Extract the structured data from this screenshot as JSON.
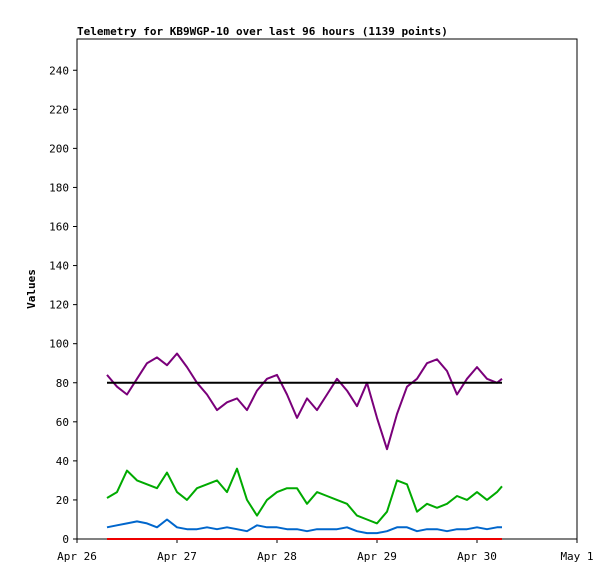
{
  "chart_data": {
    "type": "line",
    "title": "Telemetry for KB9WGP-10 over last 96 hours (1139 points)",
    "xlabel": "",
    "ylabel": "Values",
    "x_tick_labels": [
      "Apr 26",
      "Apr 27",
      "Apr 28",
      "Apr 29",
      "Apr 30",
      "May 1"
    ],
    "y_ticks": [
      0,
      20,
      40,
      60,
      80,
      100,
      120,
      140,
      160,
      180,
      200,
      220,
      240
    ],
    "xlim_days": [
      26,
      31
    ],
    "ylim": [
      0,
      256
    ],
    "grid": false,
    "x": [
      26.3,
      26.4,
      26.5,
      26.6,
      26.7,
      26.8,
      26.9,
      27.0,
      27.1,
      27.2,
      27.3,
      27.4,
      27.5,
      27.6,
      27.7,
      27.8,
      27.9,
      28.0,
      28.1,
      28.2,
      28.3,
      28.4,
      28.5,
      28.6,
      28.7,
      28.8,
      28.9,
      29.0,
      29.1,
      29.2,
      29.3,
      29.4,
      29.5,
      29.6,
      29.7,
      29.8,
      29.9,
      30.0,
      30.1,
      30.2,
      30.25
    ],
    "series": [
      {
        "color": "#7a007a",
        "values": [
          84,
          78,
          74,
          82,
          90,
          93,
          89,
          95,
          88,
          80,
          74,
          66,
          70,
          72,
          66,
          76,
          82,
          84,
          74,
          62,
          72,
          66,
          74,
          82,
          76,
          68,
          80,
          62,
          46,
          64,
          78,
          82,
          90,
          92,
          86,
          74,
          82,
          88,
          82,
          80,
          82
        ]
      },
      {
        "color": "#000000",
        "values": [
          80,
          80,
          80,
          80,
          80,
          80,
          80,
          80,
          80,
          80,
          80,
          80,
          80,
          80,
          80,
          80,
          80,
          80,
          80,
          80,
          80,
          80,
          80,
          80,
          80,
          80,
          80,
          80,
          80,
          80,
          80,
          80,
          80,
          80,
          80,
          80,
          80,
          80,
          80,
          80,
          80
        ]
      },
      {
        "color": "#00aa00",
        "values": [
          21,
          24,
          35,
          30,
          28,
          26,
          34,
          24,
          20,
          26,
          28,
          30,
          24,
          36,
          20,
          12,
          20,
          24,
          26,
          26,
          18,
          24,
          22,
          20,
          18,
          12,
          10,
          8,
          14,
          30,
          28,
          14,
          18,
          16,
          18,
          22,
          20,
          24,
          20,
          24,
          27
        ]
      },
      {
        "color": "#0066cc",
        "values": [
          6,
          7,
          8,
          9,
          8,
          6,
          10,
          6,
          5,
          5,
          6,
          5,
          6,
          5,
          4,
          7,
          6,
          6,
          5,
          5,
          4,
          5,
          5,
          5,
          6,
          4,
          3,
          3,
          4,
          6,
          6,
          4,
          5,
          5,
          4,
          5,
          5,
          6,
          5,
          6,
          6
        ]
      },
      {
        "color": "#ee0000",
        "values": [
          0,
          0,
          0,
          0,
          0,
          0,
          0,
          0,
          0,
          0,
          0,
          0,
          0,
          0,
          0,
          0,
          0,
          0,
          0,
          0,
          0,
          0,
          0,
          0,
          0,
          0,
          0,
          0,
          0,
          0,
          0,
          0,
          0,
          0,
          0,
          0,
          0,
          0,
          0,
          0,
          0
        ]
      }
    ]
  }
}
